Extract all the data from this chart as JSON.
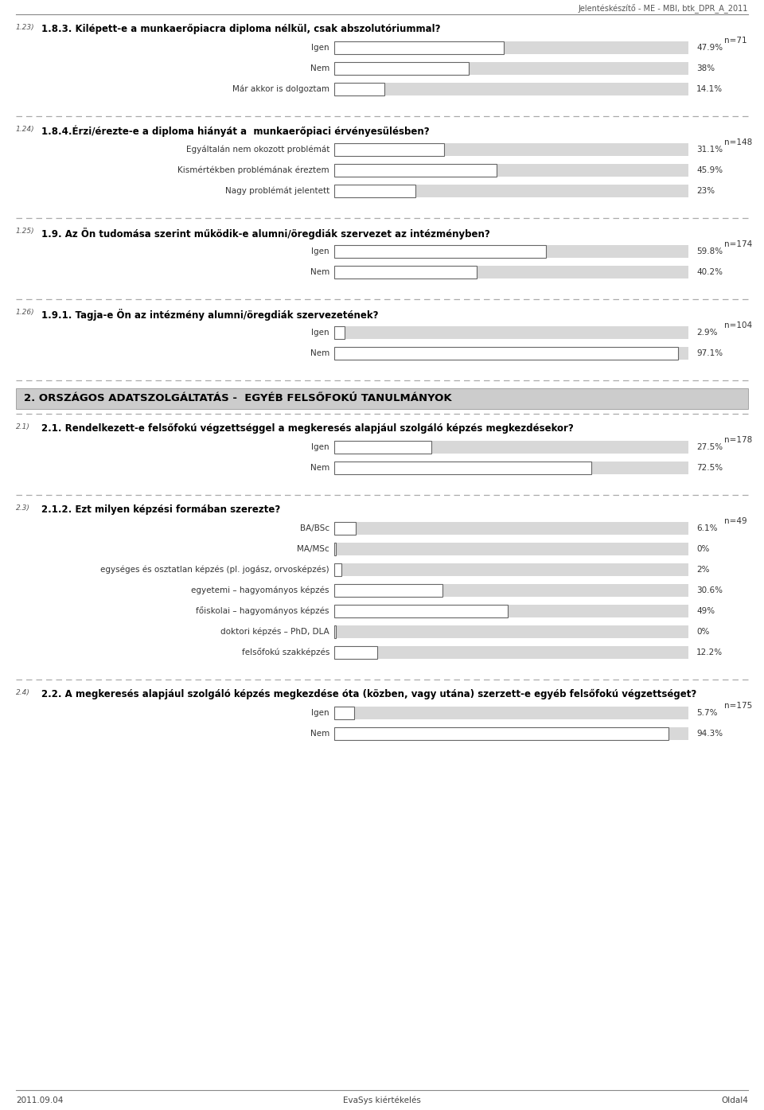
{
  "header_text": "Jelentéskészítő - ME - MBI, btk_DPR_A_2011",
  "footer_left": "2011.09.04",
  "footer_center": "EvaSys kiértékelés",
  "footer_right": "Oldal4",
  "sections": [
    {
      "id": "1.23",
      "question": "1.8.3. Kilépett-e a munkaerőpiacra diploma nélkül, csak abszolutóriummal?",
      "n_label": "n=71",
      "bars": [
        {
          "label": "Igen",
          "value": 47.9,
          "pct_text": "47.9%"
        },
        {
          "label": "Nem",
          "value": 38.0,
          "pct_text": "38%"
        },
        {
          "label": "Már akkor is dolgoztam",
          "value": 14.1,
          "pct_text": "14.1%"
        }
      ]
    },
    {
      "id": "1.24",
      "question": "1.8.4.Érzi/érezte-e a diploma hiányát a  munkaerőpiaci érvényesülésben?",
      "n_label": "n=148",
      "bars": [
        {
          "label": "Egyáltalán nem okozott problémát",
          "value": 31.1,
          "pct_text": "31.1%"
        },
        {
          "label": "Kismértékben problémának éreztem",
          "value": 45.9,
          "pct_text": "45.9%"
        },
        {
          "label": "Nagy problémát jelentett",
          "value": 23.0,
          "pct_text": "23%"
        }
      ]
    },
    {
      "id": "1.25",
      "question": "1.9. Az Ön tudomása szerint működik-e alumni/öregdiák szervezet az intézményben?",
      "n_label": "n=174",
      "bars": [
        {
          "label": "Igen",
          "value": 59.8,
          "pct_text": "59.8%"
        },
        {
          "label": "Nem",
          "value": 40.2,
          "pct_text": "40.2%"
        }
      ]
    },
    {
      "id": "1.26",
      "question": "1.9.1. Tagja-e Ön az intézmény alumni/öregdiák szervezetének?",
      "n_label": "n=104",
      "bars": [
        {
          "label": "Igen",
          "value": 2.9,
          "pct_text": "2.9%"
        },
        {
          "label": "Nem",
          "value": 97.1,
          "pct_text": "97.1%"
        }
      ]
    },
    {
      "id": "section2_header",
      "type": "section_header",
      "text": "2. ORSZÁGOS ADATSZOLGÁLTATÁS -  EGYÉB FELSŐFOKÚ TANULMÁNYOK"
    },
    {
      "id": "2.1",
      "question": "2.1. Rendelkezett-e felsőfokú végzettséggel a megkeresés alapjául szolgáló képzés megkezdésekor?",
      "n_label": "n=178",
      "bars": [
        {
          "label": "Igen",
          "value": 27.5,
          "pct_text": "27.5%"
        },
        {
          "label": "Nem",
          "value": 72.5,
          "pct_text": "72.5%"
        }
      ]
    },
    {
      "id": "2.3",
      "question": "2.1.2. Ezt milyen képzési formában szerezte?",
      "n_label": "n=49",
      "bars": [
        {
          "label": "BA/BSc",
          "value": 6.1,
          "pct_text": "6.1%"
        },
        {
          "label": "MA/MSc",
          "value": 0.0,
          "pct_text": "0%"
        },
        {
          "label": "egységes és osztatlan képzés (pl. jogász, orvosképzés)",
          "value": 2.0,
          "pct_text": "2%"
        },
        {
          "label": "egyetemi – hagyományos képzés",
          "value": 30.6,
          "pct_text": "30.6%"
        },
        {
          "label": "főiskolai – hagyományos képzés",
          "value": 49.0,
          "pct_text": "49%"
        },
        {
          "label": "doktori képzés – PhD, DLA",
          "value": 0.0,
          "pct_text": "0%"
        },
        {
          "label": "felsőfokú szakképzés",
          "value": 12.2,
          "pct_text": "12.2%"
        }
      ]
    },
    {
      "id": "2.4",
      "question": "2.2. A megkeresés alapjául szolgáló képzés megkezdése óta (közben, vagy utána) szerzett-e egyéb felsőfokú végzettséget?",
      "n_label": "n=175",
      "bars": [
        {
          "label": "Igen",
          "value": 5.7,
          "pct_text": "5.7%"
        },
        {
          "label": "Nem",
          "value": 94.3,
          "pct_text": "94.3%"
        }
      ]
    }
  ],
  "bar_max": 100.0,
  "bar_bg_color": "#d8d8d8",
  "bar_fill_color": "#ffffff",
  "bar_edge_color": "#666666",
  "label_color": "#333333",
  "question_color": "#000000",
  "id_color": "#555555",
  "section_header_bg": "#cccccc",
  "section_header_color": "#000000",
  "dashed_line_color": "#aaaaaa",
  "background_color": "#ffffff"
}
